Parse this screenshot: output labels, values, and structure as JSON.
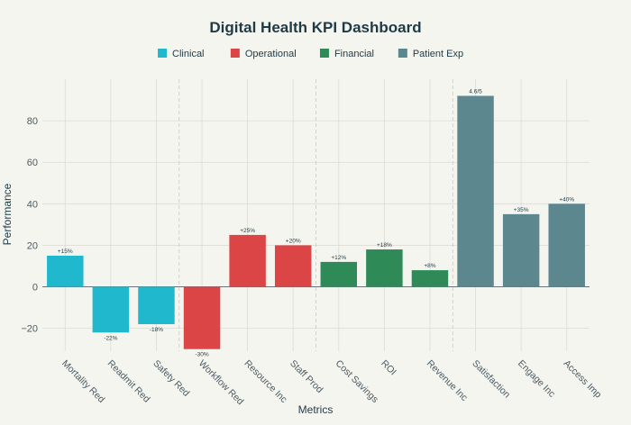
{
  "chart_data": {
    "type": "bar",
    "title": "Digital Health KPI Dashboard",
    "xlabel": "Metrics",
    "ylabel": "Performance",
    "ylim": [
      -31,
      100
    ],
    "yticks": [
      -20,
      0,
      20,
      40,
      60,
      80
    ],
    "grid": true,
    "legend_position": "top-center",
    "groups": [
      {
        "name": "Clinical",
        "color": "#1fb8cd"
      },
      {
        "name": "Operational",
        "color": "#db4545"
      },
      {
        "name": "Financial",
        "color": "#2e8b57"
      },
      {
        "name": "Patient Exp",
        "color": "#5d878f"
      }
    ],
    "bars": [
      {
        "category": "Mortality Red",
        "value": 15,
        "label": "+15%",
        "group": 0
      },
      {
        "category": "Readmit Red",
        "value": -22,
        "label": "-22%",
        "group": 0
      },
      {
        "category": "Safety Red",
        "value": -18,
        "label": "-18%",
        "group": 0
      },
      {
        "category": "Workflow Red",
        "value": -30,
        "label": "-30%",
        "group": 1
      },
      {
        "category": "Resource Inc",
        "value": 25,
        "label": "+25%",
        "group": 1
      },
      {
        "category": "Staff Prod",
        "value": 20,
        "label": "+20%",
        "group": 1
      },
      {
        "category": "Cost Savings",
        "value": 12,
        "label": "+12%",
        "group": 2
      },
      {
        "category": "ROI",
        "value": 18,
        "label": "+18%",
        "group": 2
      },
      {
        "category": "Revenue Inc",
        "value": 8,
        "label": "+8%",
        "group": 2
      },
      {
        "category": "Satisfaction",
        "value": 92,
        "label": "4.6/5",
        "group": 3
      },
      {
        "category": "Engage Inc",
        "value": 35,
        "label": "+35%",
        "group": 3
      },
      {
        "category": "Access Imp",
        "value": 40,
        "label": "+40%",
        "group": 3
      }
    ],
    "group_separators_after": [
      3,
      6,
      9
    ]
  }
}
